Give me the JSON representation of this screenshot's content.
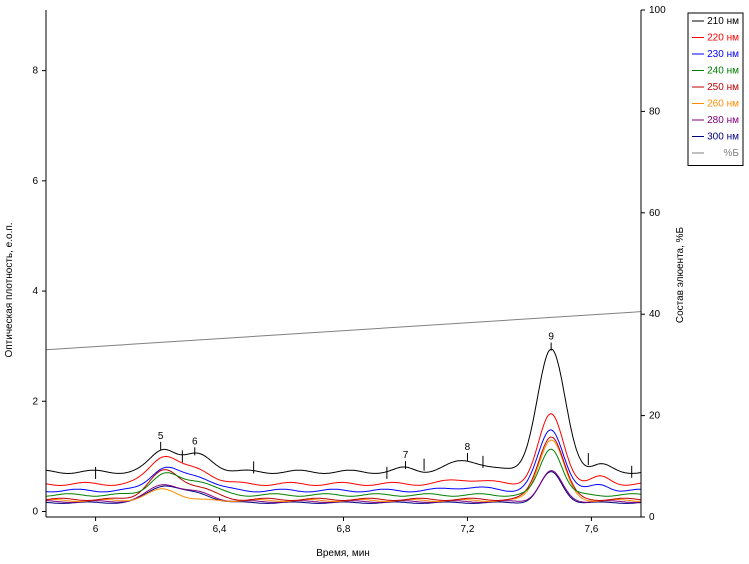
{
  "chart_data": {
    "type": "line",
    "xlabel": "Время, мин",
    "ylabel_left": "Оптическая плотность, е.о.п.",
    "ylabel_right": "Состав элюента, %Б",
    "xlim": [
      5.84,
      7.76
    ],
    "ylim_left": [
      -0.1,
      9.1
    ],
    "ylim_right": [
      0,
      100
    ],
    "x_ticks": [
      "6",
      "6,4",
      "6,8",
      "7,2",
      "7,6"
    ],
    "x_tick_values": [
      6.0,
      6.4,
      6.8,
      7.2,
      7.6
    ],
    "y_left_ticks": [
      "0",
      "2",
      "4",
      "6",
      "8"
    ],
    "y_left_tick_values": [
      0,
      2,
      4,
      6,
      8
    ],
    "y_right_ticks": [
      "0",
      "20",
      "40",
      "60",
      "80",
      "100"
    ],
    "y_right_tick_values": [
      0,
      20,
      40,
      60,
      80,
      100
    ],
    "grid": false,
    "legend_position": "top-right",
    "series": [
      {
        "name": "210 нм",
        "color": "#000000",
        "baseline": 0.72,
        "peaks": [
          [
            6.22,
            0.4,
            0.04
          ],
          [
            6.33,
            0.3,
            0.05
          ],
          [
            7.0,
            0.06,
            0.03
          ],
          [
            7.2,
            0.2,
            0.06
          ],
          [
            7.47,
            2.2,
            0.045
          ],
          [
            7.63,
            0.12,
            0.03
          ]
        ]
      },
      {
        "name": "220 нм",
        "color": "#ff0000",
        "baseline": 0.5,
        "peaks": [
          [
            6.22,
            0.5,
            0.045
          ],
          [
            6.33,
            0.25,
            0.05
          ],
          [
            7.2,
            0.08,
            0.06
          ],
          [
            7.47,
            1.25,
            0.04
          ],
          [
            7.63,
            0.12,
            0.03
          ]
        ]
      },
      {
        "name": "230 нм",
        "color": "#0000ff",
        "baseline": 0.38,
        "peaks": [
          [
            6.22,
            0.4,
            0.045
          ],
          [
            6.33,
            0.25,
            0.05
          ],
          [
            7.2,
            0.06,
            0.06
          ],
          [
            7.47,
            1.1,
            0.04
          ],
          [
            7.63,
            0.1,
            0.03
          ]
        ]
      },
      {
        "name": "240 нм",
        "color": "#008000",
        "baseline": 0.3,
        "peaks": [
          [
            6.22,
            0.36,
            0.045
          ],
          [
            6.33,
            0.25,
            0.05
          ],
          [
            7.47,
            0.85,
            0.035
          ]
        ]
      },
      {
        "name": "250 нм",
        "color": "#c00000",
        "baseline": 0.22,
        "peaks": [
          [
            6.22,
            0.5,
            0.05
          ],
          [
            6.33,
            0.2,
            0.05
          ],
          [
            7.47,
            1.15,
            0.04
          ]
        ]
      },
      {
        "name": "260 нм",
        "color": "#ff8c00",
        "baseline": 0.2,
        "peaks": [
          [
            6.22,
            0.2,
            0.05
          ],
          [
            7.47,
            1.1,
            0.04
          ]
        ]
      },
      {
        "name": "280 нм",
        "color": "#800080",
        "baseline": 0.18,
        "peaks": [
          [
            6.22,
            0.3,
            0.05
          ],
          [
            6.33,
            0.15,
            0.05
          ],
          [
            7.47,
            0.55,
            0.035
          ]
        ]
      },
      {
        "name": "300 нм",
        "color": "#000080",
        "baseline": 0.16,
        "peaks": [
          [
            6.22,
            0.3,
            0.05
          ],
          [
            6.33,
            0.15,
            0.05
          ],
          [
            7.47,
            0.55,
            0.035
          ]
        ]
      }
    ],
    "gradient_series": {
      "name": "%Б",
      "color": "#808080",
      "axis": "right",
      "x": [
        5.84,
        7.76
      ],
      "y": [
        33.0,
        40.5
      ]
    },
    "peak_labels": [
      {
        "label": "5",
        "x": 6.21,
        "y": 1.3
      },
      {
        "label": "6",
        "x": 6.32,
        "y": 1.2
      },
      {
        "label": "7",
        "x": 7.0,
        "y": 0.95
      },
      {
        "label": "8",
        "x": 7.2,
        "y": 1.1
      },
      {
        "label": "9",
        "x": 7.47,
        "y": 3.1
      }
    ],
    "boundary_marks": [
      {
        "x": 6.0,
        "y": 0.7
      },
      {
        "x": 6.28,
        "y": 1.0
      },
      {
        "x": 6.51,
        "y": 0.8
      },
      {
        "x": 6.94,
        "y": 0.7
      },
      {
        "x": 7.06,
        "y": 0.85
      },
      {
        "x": 7.25,
        "y": 0.9
      },
      {
        "x": 7.59,
        "y": 0.95
      },
      {
        "x": 7.73,
        "y": 0.72
      }
    ]
  }
}
